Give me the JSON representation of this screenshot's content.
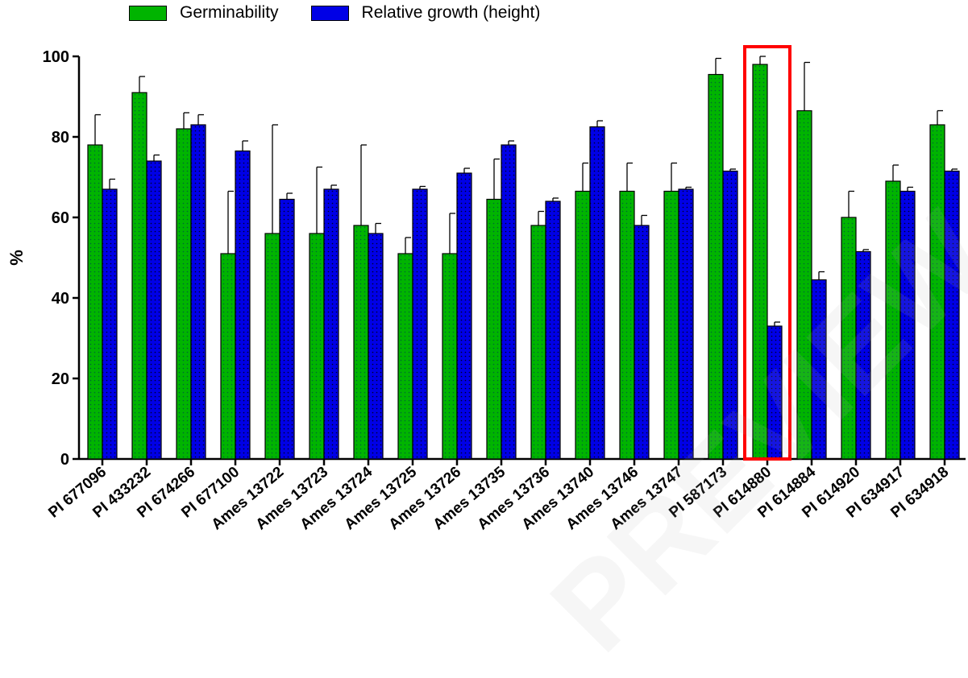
{
  "legend": [
    {
      "label": "Germinability",
      "color": "#00b400"
    },
    {
      "label": "Relative growth (height)",
      "color": "#0000e6"
    }
  ],
  "watermark_text": "PREVIEW",
  "chart_data": {
    "type": "bar",
    "ylabel": "%",
    "xlabel": "",
    "ylim": [
      0,
      100
    ],
    "yticks": [
      0,
      20,
      40,
      60,
      80,
      100
    ],
    "highlight_category": "PI 614880",
    "highlight_color": "#ff0000",
    "categories": [
      "PI 677096",
      "PI 433232",
      "PI 674266",
      "PI 677100",
      "Ames 13722",
      "Ames 13723",
      "Ames 13724",
      "Ames 13725",
      "Ames 13726",
      "Ames 13735",
      "Ames 13736",
      "Ames 13740",
      "Ames 13746",
      "Ames 13747",
      "PI 587173",
      "PI 614880",
      "PI 614884",
      "PI 614920",
      "PI 634917",
      "PI 634918"
    ],
    "series": [
      {
        "name": "Germinability",
        "color": "#00b400",
        "values": [
          78,
          91,
          82,
          51,
          56,
          56,
          58,
          51,
          51,
          64.5,
          58,
          66.5,
          66.5,
          66.5,
          95.5,
          98,
          86.5,
          60,
          69,
          83
        ],
        "errors": [
          7.5,
          4,
          4,
          15.5,
          27,
          16.5,
          20,
          4,
          10,
          10,
          3.5,
          7,
          7,
          7,
          4,
          2,
          12,
          6.5,
          4,
          3.5
        ]
      },
      {
        "name": "Relative growth (height)",
        "color": "#0000e6",
        "values": [
          67,
          74,
          83,
          76.5,
          64.5,
          67,
          56,
          67,
          71,
          78,
          64,
          82.5,
          58,
          67,
          71.5,
          33,
          44.5,
          51.5,
          66.5,
          71.5
        ],
        "errors": [
          2.5,
          1.5,
          2.5,
          2.5,
          1.5,
          1,
          2.5,
          0.7,
          1.2,
          1,
          0.8,
          1.5,
          2.5,
          0.5,
          0.5,
          1,
          2,
          0.5,
          1,
          0.5
        ]
      }
    ]
  }
}
